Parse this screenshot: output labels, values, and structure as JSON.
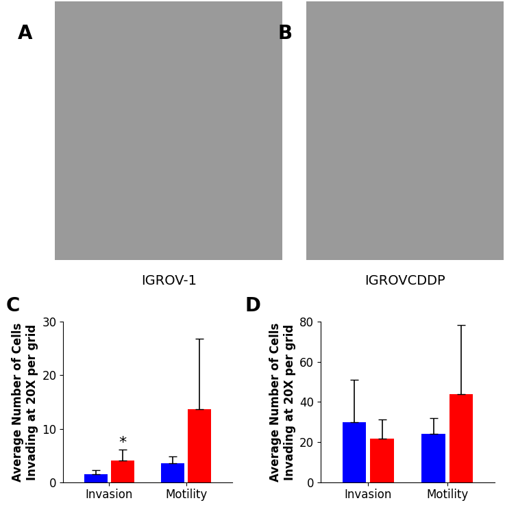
{
  "chart_data": [
    {
      "type": "bar",
      "panel": "C",
      "y_label": "Average Number of Cells\nInvading at 20X per grid",
      "categories": [
        "Invasion",
        "Motility"
      ],
      "series": [
        {
          "color": "#0000ff",
          "values": [
            1.5,
            3.5
          ],
          "error": [
            0.8,
            1.3
          ]
        },
        {
          "color": "#ff0000",
          "values": [
            4.0,
            13.6
          ],
          "error": [
            2.1,
            13.2
          ]
        }
      ],
      "ylim": [
        0,
        30
      ],
      "yticks": [
        0,
        10,
        20,
        30
      ],
      "annotations": [
        {
          "text": "*",
          "category": "Invasion",
          "series_index": 1
        }
      ]
    },
    {
      "type": "bar",
      "panel": "D",
      "y_label": "Average Number of Cells\nInvading at 20X per grid",
      "categories": [
        "Invasion",
        "Motility"
      ],
      "series": [
        {
          "color": "#0000ff",
          "values": [
            29.8,
            24.1
          ],
          "error": [
            21.2,
            8.0
          ]
        },
        {
          "color": "#ff0000",
          "values": [
            21.8,
            43.8
          ],
          "error": [
            9.4,
            34.6
          ]
        }
      ],
      "ylim": [
        0,
        80
      ],
      "yticks": [
        0,
        20,
        40,
        60,
        80
      ]
    }
  ],
  "images": [
    {
      "panel": "A",
      "caption": "IGROV-1"
    },
    {
      "panel": "B",
      "caption": "IGROVCDDP"
    }
  ]
}
